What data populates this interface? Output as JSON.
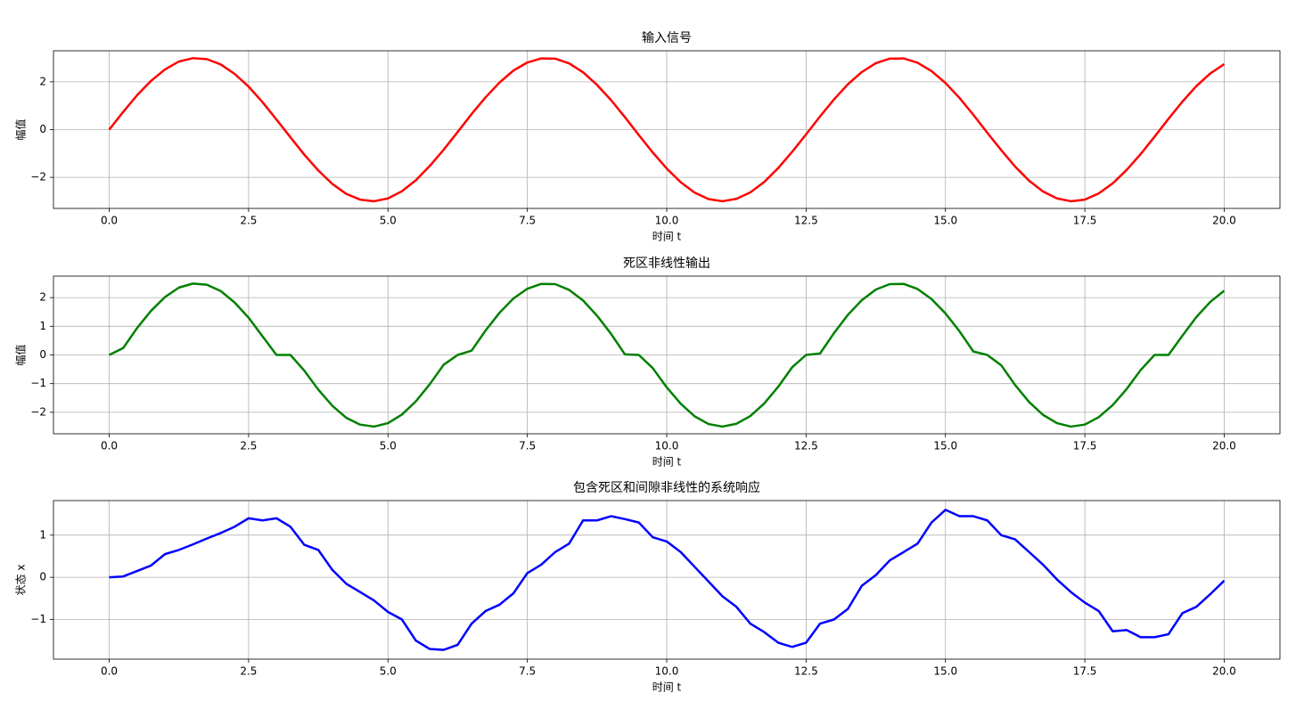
{
  "chart_data": [
    {
      "type": "line",
      "title": "输入信号",
      "xlabel": "时间 t",
      "ylabel": "幅值",
      "grid": true,
      "xlim": [
        -1,
        21
      ],
      "ylim": [
        -3.3,
        3.3
      ],
      "xticks": [
        {
          "value": 0,
          "label": "0.0"
        },
        2.5,
        {
          "value": 5,
          "label": "5.0"
        },
        7.5,
        {
          "value": 10,
          "label": "10.0"
        },
        12.5,
        {
          "value": 15,
          "label": "15.0"
        },
        17.5,
        {
          "value": 20,
          "label": "20.0"
        }
      ],
      "yticks": [
        {
          "value": -2,
          "label": "−2"
        },
        0,
        2
      ],
      "x": [
        0,
        0.25,
        0.5,
        0.75,
        1,
        1.25,
        1.5,
        1.75,
        2,
        2.25,
        2.5,
        2.75,
        3,
        3.25,
        3.5,
        3.75,
        4,
        4.25,
        4.5,
        4.75,
        5,
        5.25,
        5.5,
        5.75,
        6,
        6.25,
        6.5,
        6.75,
        7,
        7.25,
        7.5,
        7.75,
        8,
        8.25,
        8.5,
        8.75,
        9,
        9.25,
        9.5,
        9.75,
        10,
        10.25,
        10.5,
        10.75,
        11,
        11.25,
        11.5,
        11.75,
        12,
        12.25,
        12.5,
        12.75,
        13,
        13.25,
        13.5,
        13.75,
        14,
        14.25,
        14.5,
        14.75,
        15,
        15.25,
        15.5,
        15.75,
        16,
        16.25,
        16.5,
        16.75,
        17,
        17.25,
        17.5,
        17.75,
        18,
        18.25,
        18.5,
        18.75,
        19,
        19.25,
        19.5,
        19.75,
        20
      ],
      "series": [
        {
          "color": "#ff0000",
          "values": [
            0,
            0.74,
            1.44,
            2.04,
            2.52,
            2.85,
            2.99,
            2.95,
            2.73,
            2.33,
            1.8,
            1.15,
            0.42,
            -0.32,
            -1.05,
            -1.71,
            -2.27,
            -2.69,
            -2.93,
            -3.0,
            -2.88,
            -2.58,
            -2.12,
            -1.52,
            -0.84,
            -0.1,
            0.65,
            1.35,
            1.97,
            2.47,
            2.81,
            2.98,
            2.97,
            2.77,
            2.4,
            1.87,
            1.24,
            0.52,
            -0.23,
            -0.96,
            -1.63,
            -2.2,
            -2.64,
            -2.91,
            -3.0,
            -2.9,
            -2.63,
            -2.19,
            -1.61,
            -0.93,
            -0.2,
            0.55,
            1.26,
            1.9,
            2.41,
            2.78,
            2.97,
            2.98,
            2.8,
            2.45,
            1.95,
            1.33,
            0.62,
            -0.13,
            -0.86,
            -1.55,
            -2.14,
            -2.59,
            -2.88,
            -3.0,
            -2.93,
            -2.67,
            -2.25,
            -1.69,
            -1.03,
            -0.3,
            0.45,
            1.17,
            1.82,
            2.35,
            2.74
          ]
        }
      ]
    },
    {
      "type": "line",
      "title": "死区非线性输出",
      "xlabel": "时间 t",
      "ylabel": "幅值",
      "grid": true,
      "xlim": [
        -1,
        21
      ],
      "ylim": [
        -2.75,
        2.75
      ],
      "xticks": [
        {
          "value": 0,
          "label": "0.0"
        },
        2.5,
        {
          "value": 5,
          "label": "5.0"
        },
        7.5,
        {
          "value": 10,
          "label": "10.0"
        },
        12.5,
        {
          "value": 15,
          "label": "15.0"
        },
        17.5,
        {
          "value": 20,
          "label": "20.0"
        }
      ],
      "yticks": [
        {
          "value": -2,
          "label": "−2"
        },
        {
          "value": -1,
          "label": "−1"
        },
        0,
        1,
        2
      ],
      "x": [
        0,
        0.25,
        0.5,
        0.75,
        1,
        1.25,
        1.5,
        1.75,
        2,
        2.25,
        2.5,
        2.75,
        3,
        3.25,
        3.5,
        3.75,
        4,
        4.25,
        4.5,
        4.75,
        5,
        5.25,
        5.5,
        5.75,
        6,
        6.25,
        6.5,
        6.75,
        7,
        7.25,
        7.5,
        7.75,
        8,
        8.25,
        8.5,
        8.75,
        9,
        9.25,
        9.5,
        9.75,
        10,
        10.25,
        10.5,
        10.75,
        11,
        11.25,
        11.5,
        11.75,
        12,
        12.25,
        12.5,
        12.75,
        13,
        13.25,
        13.5,
        13.75,
        14,
        14.25,
        14.5,
        14.75,
        15,
        15.25,
        15.5,
        15.75,
        16,
        16.25,
        16.5,
        16.75,
        17,
        17.25,
        17.5,
        17.75,
        18,
        18.25,
        18.5,
        18.75,
        19,
        19.25,
        19.5,
        19.75,
        20
      ],
      "series": [
        {
          "color": "#008000",
          "values": [
            0,
            0.24,
            0.94,
            1.54,
            2.02,
            2.35,
            2.49,
            2.45,
            2.23,
            1.83,
            1.3,
            0.65,
            0,
            0,
            -0.55,
            -1.21,
            -1.77,
            -2.19,
            -2.43,
            -2.5,
            -2.38,
            -2.08,
            -1.62,
            -1.02,
            -0.34,
            0,
            0.15,
            0.85,
            1.47,
            1.97,
            2.31,
            2.48,
            2.47,
            2.27,
            1.9,
            1.37,
            0.74,
            0.02,
            0,
            -0.46,
            -1.13,
            -1.7,
            -2.14,
            -2.41,
            -2.5,
            -2.4,
            -2.13,
            -1.69,
            -1.11,
            -0.43,
            0,
            0.05,
            0.76,
            1.4,
            1.91,
            2.28,
            2.47,
            2.48,
            2.3,
            1.95,
            1.45,
            0.83,
            0.12,
            0,
            -0.36,
            -1.05,
            -1.64,
            -2.09,
            -2.38,
            -2.5,
            -2.43,
            -2.17,
            -1.75,
            -1.19,
            -0.53,
            0,
            0,
            0.67,
            1.32,
            1.85,
            2.24
          ]
        }
      ]
    },
    {
      "type": "line",
      "title": "包含死区和间隙非线性的系统响应",
      "xlabel": "时间 t",
      "ylabel": "状态 x",
      "grid": true,
      "xlim": [
        -1,
        21
      ],
      "ylim": [
        -1.94,
        1.82
      ],
      "xticks": [
        {
          "value": 0,
          "label": "0.0"
        },
        2.5,
        {
          "value": 5,
          "label": "5.0"
        },
        7.5,
        {
          "value": 10,
          "label": "10.0"
        },
        12.5,
        {
          "value": 15,
          "label": "15.0"
        },
        17.5,
        {
          "value": 20,
          "label": "20.0"
        }
      ],
      "yticks": [
        {
          "value": -1,
          "label": "−1"
        },
        0,
        1
      ],
      "x": [
        0,
        0.25,
        0.5,
        0.75,
        1,
        1.25,
        1.5,
        1.75,
        2,
        2.25,
        2.5,
        2.75,
        3,
        3.25,
        3.5,
        3.75,
        4,
        4.25,
        4.5,
        4.75,
        5,
        5.25,
        5.5,
        5.75,
        6,
        6.25,
        6.5,
        6.75,
        7,
        7.25,
        7.5,
        7.75,
        8,
        8.25,
        8.5,
        8.75,
        9,
        9.25,
        9.5,
        9.75,
        10,
        10.25,
        10.5,
        10.75,
        11,
        11.25,
        11.5,
        11.75,
        12,
        12.25,
        12.5,
        12.75,
        13,
        13.25,
        13.5,
        13.75,
        14,
        14.25,
        14.5,
        14.75,
        15,
        15.25,
        15.5,
        15.75,
        16,
        16.25,
        16.5,
        16.75,
        17,
        17.25,
        17.5,
        17.75,
        18,
        18.25,
        18.5,
        18.75,
        19,
        19.25,
        19.5,
        19.75,
        20
      ],
      "series": [
        {
          "color": "#0000ff",
          "values": [
            0,
            0.02,
            0.15,
            0.28,
            0.55,
            0.65,
            0.78,
            0.92,
            1.05,
            1.2,
            1.4,
            1.35,
            1.4,
            1.2,
            0.77,
            0.65,
            0.18,
            -0.15,
            -0.35,
            -0.55,
            -0.82,
            -1.0,
            -1.5,
            -1.7,
            -1.72,
            -1.6,
            -1.1,
            -0.8,
            -0.65,
            -0.38,
            0.1,
            0.3,
            0.6,
            0.8,
            1.35,
            1.35,
            1.45,
            1.38,
            1.3,
            0.95,
            0.85,
            0.6,
            0.25,
            -0.1,
            -0.45,
            -0.7,
            -1.1,
            -1.3,
            -1.55,
            -1.65,
            -1.55,
            -1.1,
            -1.0,
            -0.75,
            -0.2,
            0.05,
            0.4,
            0.6,
            0.8,
            1.3,
            1.6,
            1.45,
            1.45,
            1.35,
            1.0,
            0.9,
            0.6,
            0.3,
            -0.05,
            -0.35,
            -0.6,
            -0.8,
            -1.28,
            -1.25,
            -1.42,
            -1.42,
            -1.35,
            -0.85,
            -0.7,
            -0.4,
            -0.08
          ]
        }
      ]
    }
  ]
}
